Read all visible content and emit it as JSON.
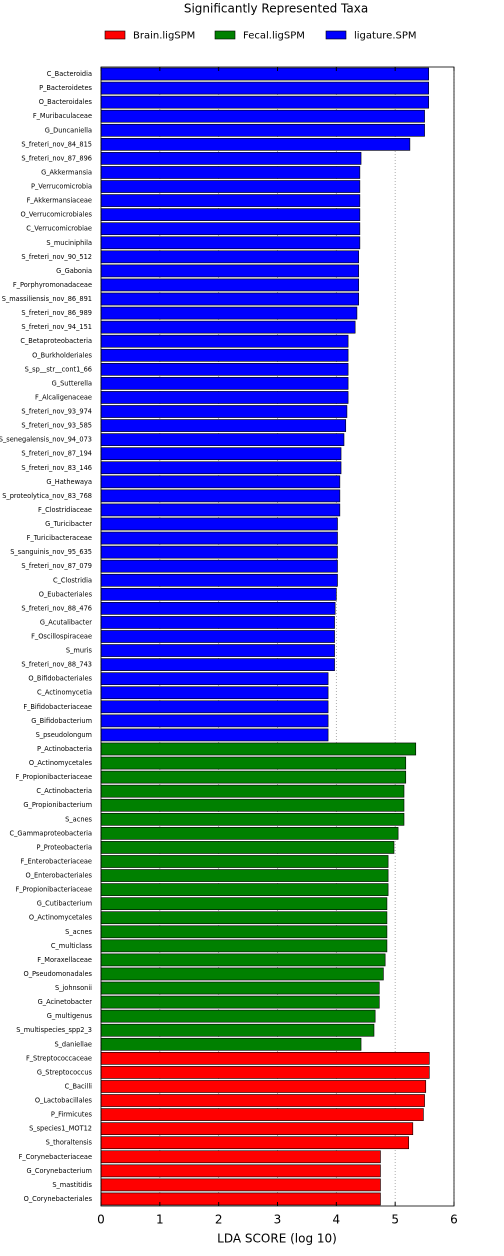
{
  "chart_data": {
    "type": "bar",
    "orientation": "horizontal",
    "title": "Significantly Represented Taxa",
    "x_label": "LDA SCORE (log 10)",
    "xlim": [
      0,
      6
    ],
    "xticks": [
      0,
      1,
      2,
      3,
      4,
      5,
      6
    ],
    "grid": true,
    "legend": "top",
    "series": [
      {
        "name": "ligature.SPM",
        "color": "#0000ff",
        "categories": [
          "C_Bacteroidia",
          "P_Bacteroidetes",
          "O_Bacteroidales",
          "F_Muribaculaceae",
          "G_Duncaniella",
          "S_freteri_nov_84_815",
          "S_freteri_nov_87_896",
          "G_Akkermansia",
          "P_Verrucomicrobia",
          "F_Akkermansiaceae",
          "O_Verrucomicrobiales",
          "C_Verrucomicrobiae",
          "S_muciniphila",
          "S_freteri_nov_90_512",
          "G_Gabonia",
          "F_Porphyromonadaceae",
          "S_massiliensis_nov_86_891",
          "S_freteri_nov_86_989",
          "S_freteri_nov_94_151",
          "C_Betaproteobacteria",
          "O_Burkholderiales",
          "S_sp__str__cont1_66",
          "G_Sutterella",
          "F_Alcaligenaceae",
          "S_freteri_nov_93_974",
          "S_freteri_nov_93_585",
          "S_senegalensis_nov_94_073",
          "S_freteri_nov_87_194",
          "S_freteri_nov_83_146",
          "G_Hathewaya",
          "S_proteolytica_nov_83_768",
          "F_Clostridiaceae",
          "G_Turicibacter",
          "F_Turicibacteraceae",
          "S_sanguinis_nov_95_635",
          "S_freteri_nov_87_079",
          "C_Clostridia",
          "O_Eubacteriales",
          "S_freteri_nov_88_476",
          "G_Acutalibacter",
          "F_Oscillospiraceae",
          "S_muris",
          "S_freteri_nov_88_743",
          "O_Bifidobacteriales",
          "C_Actinomycetia",
          "F_Bifidobacteriaceae",
          "G_Bifidobacterium",
          "S_pseudolongum"
        ],
        "values": [
          5.57,
          5.57,
          5.57,
          5.5,
          5.5,
          5.25,
          4.42,
          4.4,
          4.4,
          4.4,
          4.4,
          4.4,
          4.4,
          4.38,
          4.38,
          4.38,
          4.38,
          4.35,
          4.32,
          4.2,
          4.2,
          4.2,
          4.2,
          4.2,
          4.18,
          4.16,
          4.13,
          4.08,
          4.08,
          4.06,
          4.06,
          4.06,
          4.02,
          4.02,
          4.02,
          4.02,
          4.02,
          4.0,
          3.98,
          3.97,
          3.97,
          3.97,
          3.97,
          3.86,
          3.86,
          3.86,
          3.86,
          3.86
        ]
      },
      {
        "name": "Fecal.ligSPM",
        "color": "#008000",
        "categories": [
          "P_Actinobacteria",
          "O_Actinomycetales",
          "F_Propionibacteriaceae",
          "C_Actinobacteria",
          "G_Propionibacterium",
          "S_acnes",
          "C_Gammaproteobacteria",
          "P_Proteobacteria",
          "F_Enterobacteriaceae",
          "O_Enterobacteriales",
          "F_Propionibacteriaceae",
          "G_Cutibacterium",
          "O_Actinomycetales",
          "S_acnes",
          "C_multiclass",
          "F_Moraxellaceae",
          "O_Pseudomonadales",
          "S_johnsonii",
          "G_Acinetobacter",
          "G_multigenus",
          "S_multispecies_spp2_3",
          "S_daniellae"
        ],
        "values": [
          5.35,
          5.18,
          5.18,
          5.15,
          5.15,
          5.15,
          5.05,
          4.98,
          4.88,
          4.88,
          4.88,
          4.86,
          4.86,
          4.86,
          4.86,
          4.83,
          4.8,
          4.73,
          4.73,
          4.66,
          4.64,
          4.42
        ]
      },
      {
        "name": "Brain.ligSPM",
        "color": "#ff0000",
        "categories": [
          "F_Streptococcaceae",
          "G_Streptococcus",
          "C_Bacilli",
          "O_Lactobacillales",
          "P_Firmicutes",
          "S_species1_MOT12",
          "S_thoraltensis",
          "F_Corynebacteriaceae",
          "G_Corynebacterium",
          "S_mastitidis",
          "O_Corynebacteriales"
        ],
        "values": [
          5.58,
          5.58,
          5.52,
          5.5,
          5.48,
          5.3,
          5.23,
          4.75,
          4.75,
          4.75,
          4.75
        ]
      }
    ]
  }
}
